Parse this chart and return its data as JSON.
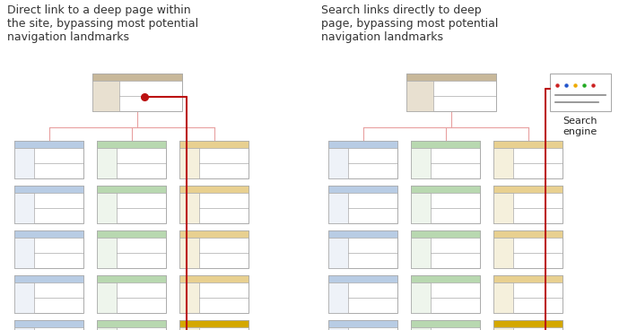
{
  "left_title": "Direct link to a deep page within\nthe site, bypassing most potential\nnavigation landmarks",
  "right_title": "Search links directly to deep\npage, bypassing most potential\nnavigation landmarks",
  "search_engine_label": "Search\nengine",
  "bg_color": "#ffffff",
  "arrow_color": "#bb1111",
  "tree_line_color": "#e8a0a0",
  "page_border_color": "#aaaaaa",
  "home_header_color": "#c8b89a",
  "col1_header_color": "#b8cce4",
  "col2_header_color": "#b8d8b0",
  "col3_header_color": "#e8d090",
  "deep_header_color": "#d4a800",
  "sidebar_color": "#f5f5e8",
  "col3_sidebar_color": "#f5f0dc"
}
